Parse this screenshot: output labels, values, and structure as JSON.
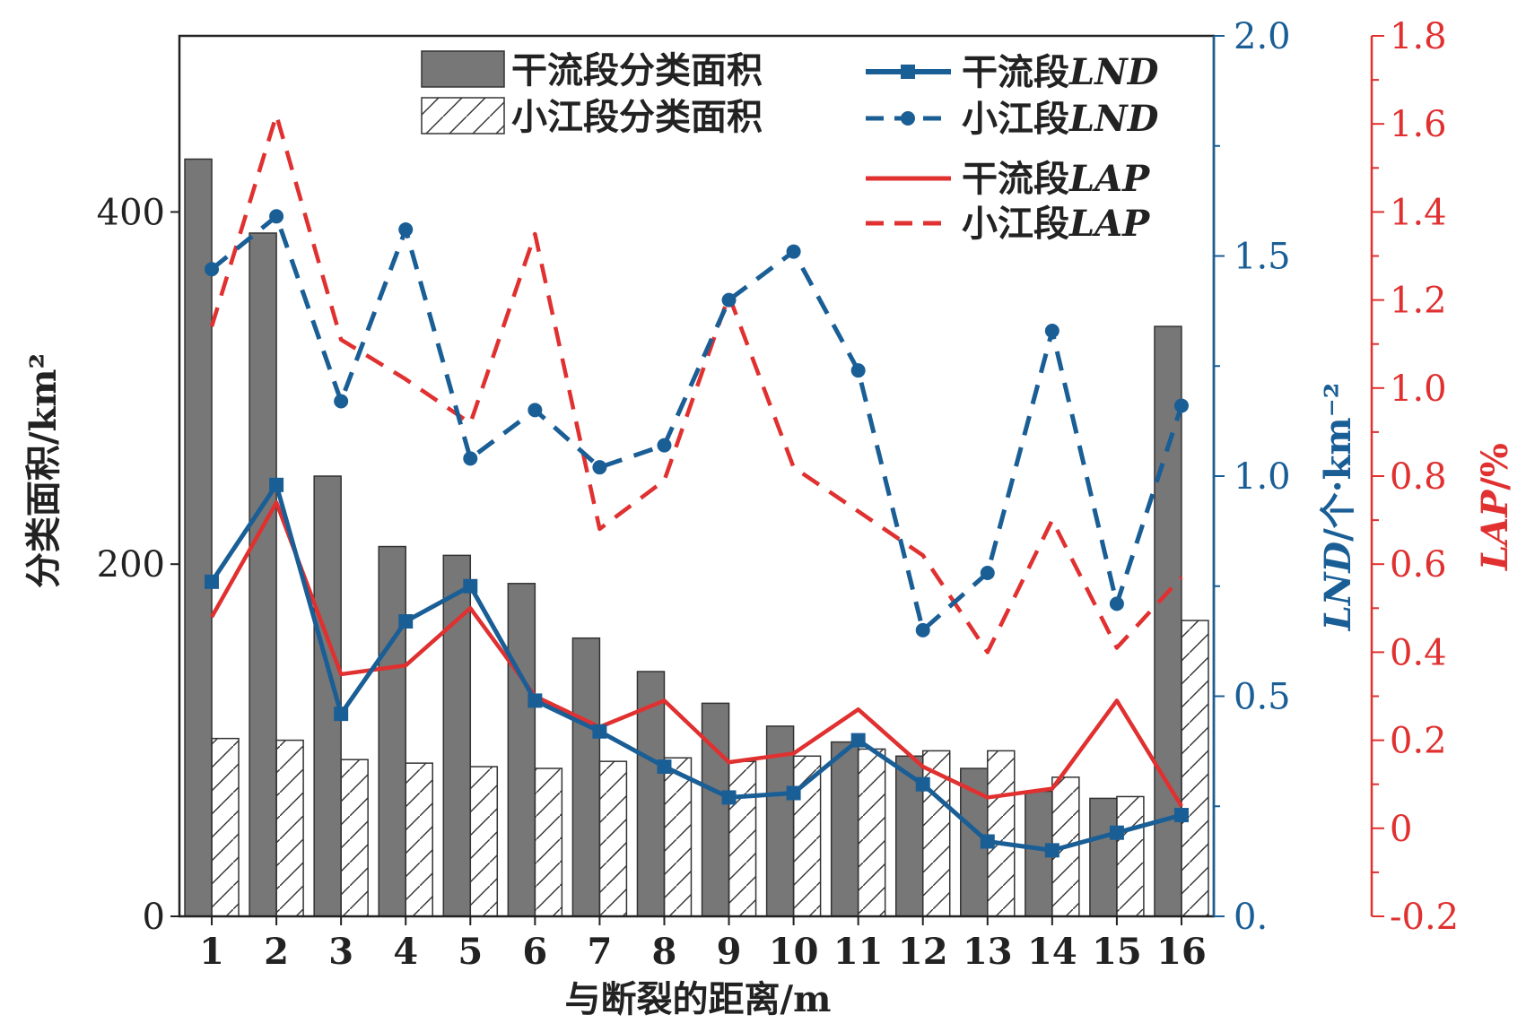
{
  "chart_data": {
    "type": "bar",
    "categories": [
      "1",
      "2",
      "3",
      "4",
      "5",
      "6",
      "7",
      "8",
      "9",
      "10",
      "11",
      "12",
      "13",
      "14",
      "15",
      "16"
    ],
    "xlabel": "与断裂的距离/m",
    "ylabel_left": "分类面积/km²",
    "ylabel_right1_main": "LND",
    "ylabel_right1_unit": "/个·km⁻²",
    "ylabel_right2_main": "LAP",
    "ylabel_right2_unit": "/%",
    "ylim_left": [
      0,
      500
    ],
    "ylim_right1": [
      0,
      2.0
    ],
    "ylim_right2": [
      -0.2,
      1.8
    ],
    "yticks_left": [
      "0",
      "200",
      "400"
    ],
    "yticks_right1": [
      "0.",
      "0.5",
      "1.0",
      "1.5",
      "2.0"
    ],
    "yticks_right2": [
      "-0.2",
      "0",
      "0.2",
      "0.4",
      "0.6",
      "0.8",
      "1.0",
      "1.2",
      "1.4",
      "1.6",
      "1.8"
    ],
    "series": [
      {
        "name": "干流段分类面积",
        "kind": "bar",
        "axis": "left",
        "style": "solid",
        "color": "#777777",
        "values": [
          430,
          388,
          250,
          210,
          205,
          189,
          158,
          139,
          121,
          108,
          99,
          91,
          84,
          71,
          67,
          335
        ]
      },
      {
        "name": "小江段分类面积",
        "kind": "bar",
        "axis": "left",
        "style": "hatch",
        "color": "#ffffff",
        "values": [
          101,
          100,
          89,
          87,
          85,
          84,
          88,
          90,
          88,
          91,
          95,
          94,
          94,
          79,
          68,
          168
        ]
      },
      {
        "name": "干流段LND",
        "kind": "line",
        "axis": "right1",
        "style": "solid-square",
        "color": "#1a5e96",
        "values": [
          0.76,
          0.98,
          0.46,
          0.67,
          0.75,
          0.49,
          0.42,
          0.34,
          0.27,
          0.28,
          0.4,
          0.3,
          0.17,
          0.15,
          0.19,
          0.23
        ]
      },
      {
        "name": "小江段LND",
        "kind": "line",
        "axis": "right1",
        "style": "dashed-circle",
        "color": "#1a5e96",
        "values": [
          1.47,
          1.59,
          1.17,
          1.56,
          1.04,
          1.15,
          1.02,
          1.07,
          1.4,
          1.51,
          1.24,
          0.65,
          0.78,
          1.33,
          0.71,
          1.16
        ]
      },
      {
        "name": "干流段LAP",
        "kind": "line",
        "axis": "right2",
        "style": "solid",
        "color": "#e03030",
        "values": [
          0.48,
          0.74,
          0.35,
          0.37,
          0.5,
          0.3,
          0.23,
          0.29,
          0.15,
          0.17,
          0.27,
          0.14,
          0.07,
          0.09,
          0.29,
          0.05
        ]
      },
      {
        "name": "小江段LAP",
        "kind": "line",
        "axis": "right2",
        "style": "dashed",
        "color": "#e03030",
        "values": [
          1.14,
          1.62,
          1.11,
          1.02,
          0.92,
          1.35,
          0.68,
          0.79,
          1.21,
          0.82,
          0.72,
          0.62,
          0.4,
          0.7,
          0.41,
          0.57
        ]
      }
    ],
    "legend": [
      "干流段分类面积",
      "小江段分类面积",
      "干流段LND",
      "小江段LND",
      "干流段LAP",
      "小江段LAP"
    ],
    "legend_labels": {
      "l1_prefix": "干流段分类面积",
      "l2_prefix": "小江段分类面积",
      "l3_prefix": "干流段",
      "l3_suffix": "LND",
      "l4_prefix": "小江段",
      "l4_suffix": "LND",
      "l5_prefix": "干流段",
      "l5_suffix": "LAP",
      "l6_prefix": "小江段",
      "l6_suffix": "LAP"
    },
    "legend_placement": "top",
    "colors": {
      "bar_main": "#777777",
      "lnd": "#1a5e96",
      "lap": "#e03030",
      "axis": "#222222"
    }
  }
}
